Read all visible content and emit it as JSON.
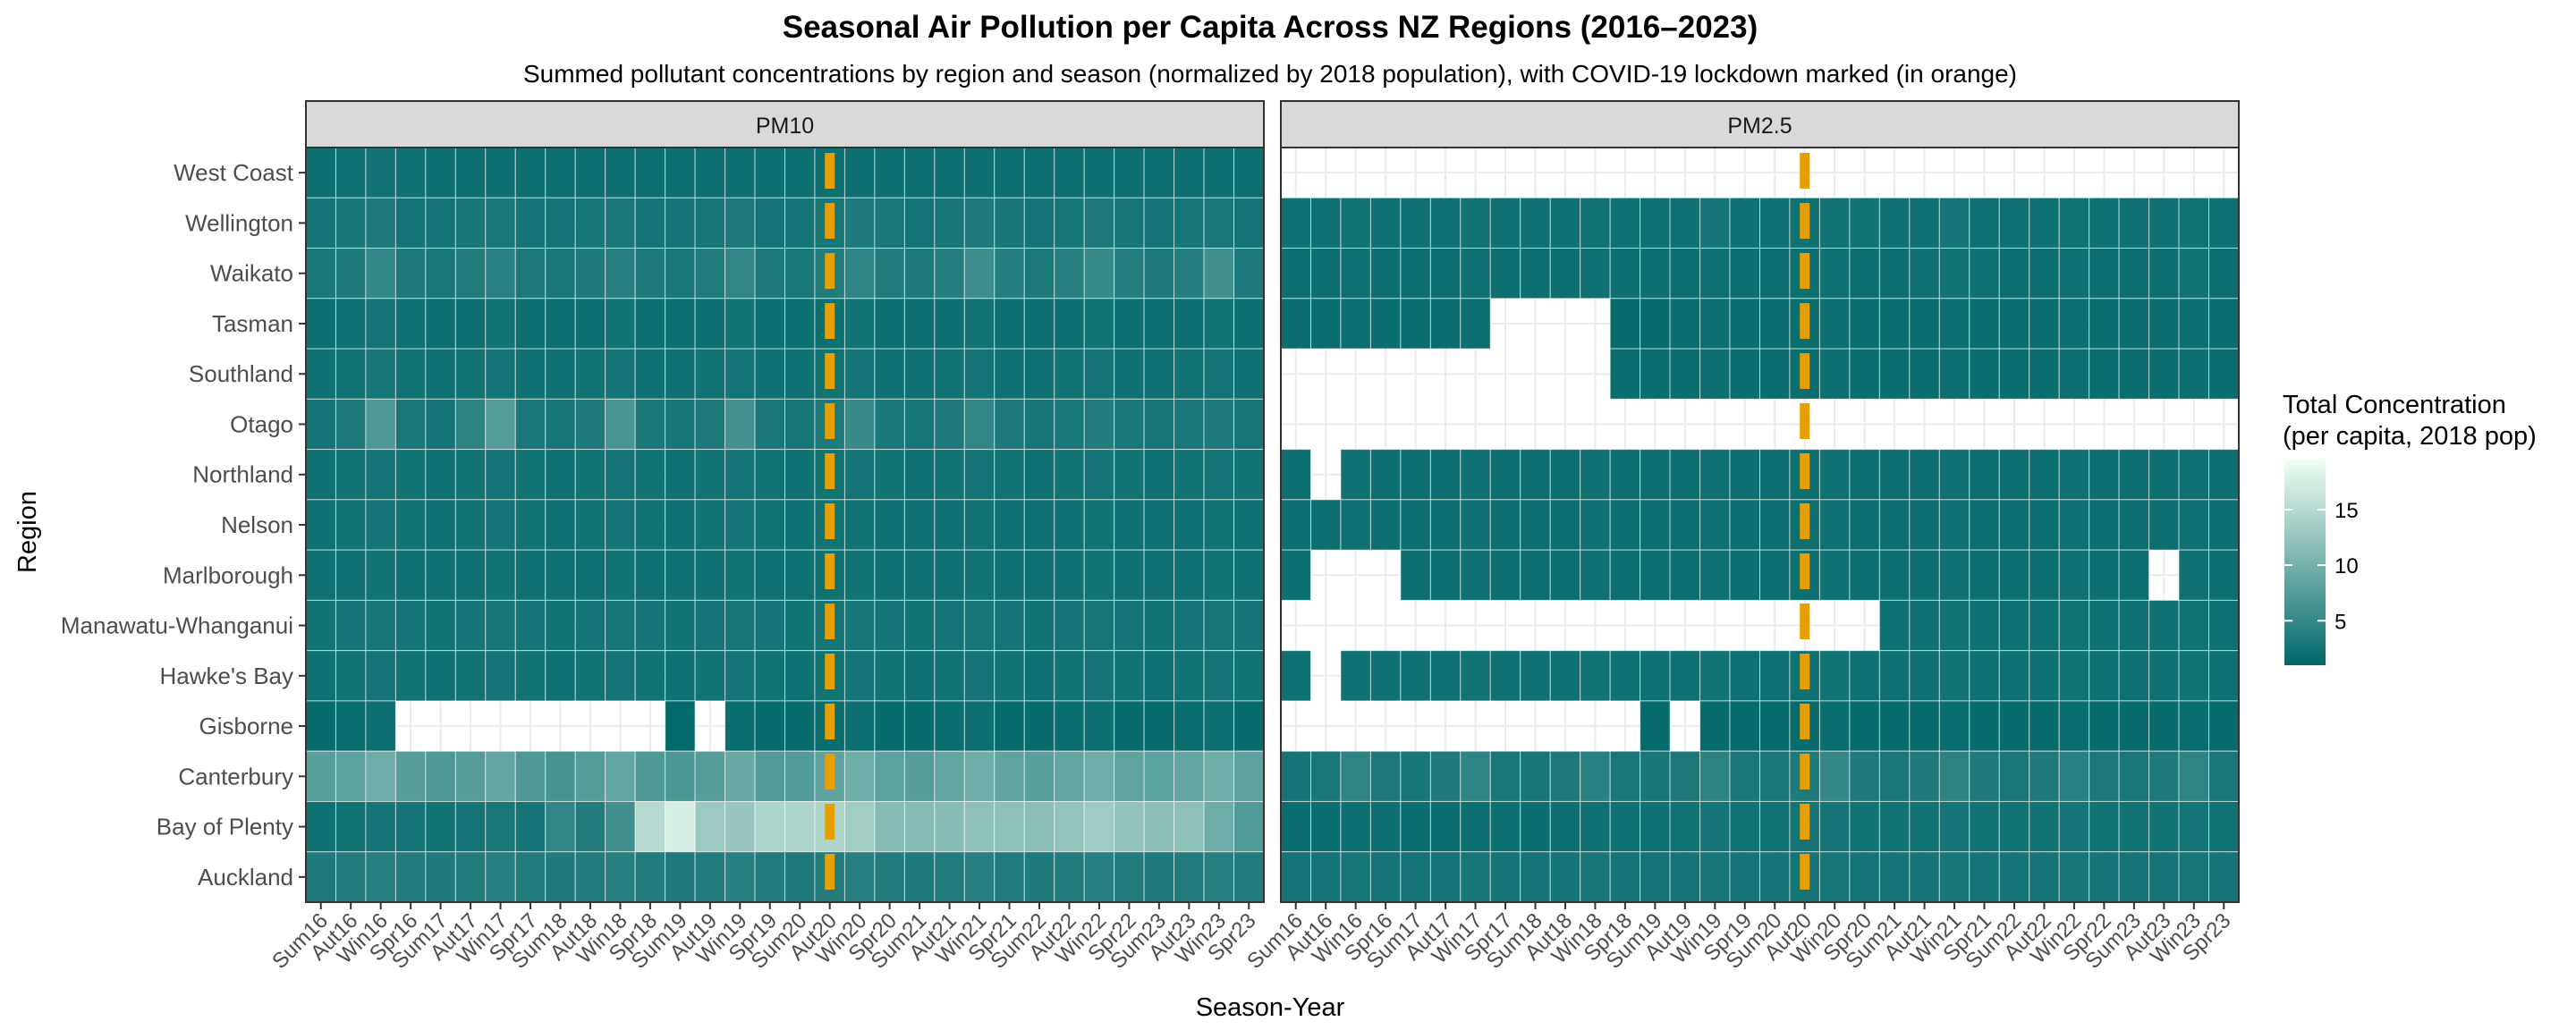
{
  "chart_data": {
    "type": "heatmap",
    "title": "Seasonal Air Pollution per Capita Across NZ Regions (2016–2023)",
    "subtitle": "Summed pollutant concentrations by region and season (normalized by 2018 population), with COVID-19 lockdown marked (in orange)",
    "xlabel": "Season-Year",
    "ylabel": "Region",
    "panels": [
      "PM10",
      "PM2.5"
    ],
    "x_categories": [
      "Sum16",
      "Aut16",
      "Win16",
      "Spr16",
      "Sum17",
      "Aut17",
      "Win17",
      "Spr17",
      "Sum18",
      "Aut18",
      "Win18",
      "Spr18",
      "Sum19",
      "Aut19",
      "Win19",
      "Spr19",
      "Sum20",
      "Aut20",
      "Win20",
      "Spr20",
      "Sum21",
      "Aut21",
      "Win21",
      "Spr21",
      "Sum22",
      "Aut22",
      "Win22",
      "Spr22",
      "Sum23",
      "Aut23",
      "Win23",
      "Spr23"
    ],
    "regions": [
      "West Coast",
      "Wellington",
      "Waikato",
      "Tasman",
      "Southland",
      "Otago",
      "Northland",
      "Nelson",
      "Marlborough",
      "Manawatu-Whanganui",
      "Hawke's Bay",
      "Gisborne",
      "Canterbury",
      "Bay of Plenty",
      "Auckland"
    ],
    "lockdown_marker": {
      "category": "Aut20",
      "color": "#E69F00"
    },
    "legend": {
      "title_line1": "Total Concentration",
      "title_line2": "(per capita, 2018 pop)",
      "breaks": [
        5,
        10,
        15
      ],
      "break_labels": [
        "5",
        "10",
        "15"
      ],
      "range": [
        1,
        19.5
      ],
      "color_low": "#006769",
      "color_high": "#F0FFF2",
      "placement": "right"
    },
    "series": [
      {
        "name": "PM10",
        "values": [
          [
            2.0,
            2.2,
            2.5,
            2.2,
            2.0,
            2.0,
            2.0,
            2.0,
            2.0,
            2.0,
            2.0,
            2.0,
            2.0,
            2.0,
            2.0,
            2.0,
            2.0,
            2.0,
            2.0,
            2.0,
            2.0,
            2.0,
            2.0,
            2.0,
            2.0,
            2.0,
            2.0,
            2.0,
            2.0,
            2.0,
            2.0,
            2.0
          ],
          [
            2.6,
            2.8,
            3.4,
            2.6,
            2.6,
            2.8,
            3.0,
            2.6,
            2.6,
            2.8,
            3.0,
            2.6,
            2.6,
            2.8,
            3.2,
            2.6,
            2.6,
            2.8,
            3.4,
            3.0,
            2.6,
            2.8,
            3.4,
            2.8,
            2.6,
            2.8,
            3.2,
            2.8,
            2.6,
            2.8,
            3.0,
            2.6
          ],
          [
            3.0,
            3.4,
            5.0,
            3.2,
            3.0,
            3.6,
            4.2,
            3.2,
            3.0,
            3.4,
            4.0,
            3.2,
            3.0,
            3.6,
            4.8,
            3.2,
            3.0,
            3.6,
            4.6,
            3.6,
            3.2,
            3.8,
            5.6,
            3.8,
            3.2,
            4.0,
            5.2,
            3.8,
            3.2,
            3.8,
            6.0,
            3.4
          ],
          [
            2.0,
            2.2,
            2.6,
            2.2,
            2.0,
            2.0,
            2.4,
            2.0,
            2.0,
            2.0,
            2.4,
            2.0,
            2.0,
            2.0,
            2.4,
            2.0,
            2.0,
            2.0,
            2.4,
            2.0,
            2.0,
            2.0,
            2.4,
            2.0,
            2.0,
            2.0,
            2.4,
            2.0,
            2.0,
            2.0,
            2.4,
            2.0
          ],
          [
            2.2,
            2.4,
            2.8,
            2.4,
            2.2,
            2.4,
            2.6,
            2.2,
            2.2,
            2.4,
            2.6,
            2.2,
            2.2,
            2.4,
            2.6,
            2.2,
            2.2,
            2.4,
            2.6,
            2.2,
            2.2,
            2.4,
            2.6,
            2.2,
            2.2,
            2.4,
            2.6,
            2.2,
            2.2,
            2.4,
            2.6,
            2.2
          ],
          [
            2.6,
            3.2,
            7.0,
            3.0,
            2.6,
            4.4,
            7.4,
            3.0,
            2.8,
            3.4,
            6.6,
            3.0,
            2.8,
            3.2,
            6.2,
            3.0,
            2.8,
            3.4,
            5.4,
            3.0,
            2.8,
            3.4,
            4.8,
            3.2,
            2.8,
            3.0,
            3.6,
            3.0,
            2.8,
            3.0,
            3.4,
            2.8
          ],
          [
            2.2,
            2.4,
            2.6,
            2.4,
            2.2,
            2.4,
            2.6,
            2.4,
            2.2,
            2.4,
            2.6,
            2.4,
            2.2,
            2.4,
            2.6,
            2.4,
            2.2,
            2.4,
            2.6,
            2.4,
            2.2,
            2.4,
            2.6,
            2.4,
            2.2,
            2.4,
            2.6,
            2.4,
            2.2,
            2.4,
            2.6,
            2.4
          ],
          [
            2.2,
            2.4,
            2.6,
            2.4,
            2.2,
            2.4,
            2.6,
            2.4,
            2.2,
            2.4,
            2.6,
            2.4,
            2.2,
            2.4,
            2.6,
            2.4,
            2.2,
            2.4,
            2.4,
            2.2,
            2.2,
            2.2,
            2.4,
            2.2,
            2.2,
            2.2,
            2.4,
            2.2,
            2.2,
            2.2,
            2.4,
            2.2
          ],
          [
            2.2,
            2.2,
            2.4,
            2.2,
            2.2,
            2.2,
            2.4,
            2.2,
            2.2,
            2.2,
            2.4,
            2.2,
            2.2,
            2.2,
            2.4,
            2.2,
            2.2,
            2.2,
            2.4,
            2.2,
            2.2,
            2.2,
            2.4,
            2.2,
            2.2,
            2.2,
            2.4,
            2.2,
            2.2,
            2.2,
            2.4,
            2.2
          ],
          [
            2.4,
            2.6,
            2.8,
            2.6,
            2.4,
            2.6,
            2.8,
            2.6,
            2.4,
            2.6,
            2.8,
            2.6,
            2.4,
            2.6,
            2.8,
            2.6,
            2.4,
            2.6,
            2.8,
            2.6,
            2.4,
            2.6,
            2.8,
            2.6,
            2.4,
            2.6,
            2.8,
            2.6,
            2.4,
            2.6,
            2.8,
            2.6
          ],
          [
            2.2,
            2.4,
            2.6,
            2.4,
            2.2,
            2.4,
            2.6,
            2.4,
            2.2,
            2.4,
            2.6,
            2.4,
            2.2,
            2.4,
            2.6,
            2.4,
            2.2,
            2.4,
            2.6,
            2.4,
            2.2,
            2.4,
            2.6,
            2.4,
            2.2,
            2.4,
            2.6,
            2.4,
            2.2,
            2.4,
            2.6,
            2.4
          ],
          [
            1.6,
            1.8,
            2.0,
            null,
            null,
            null,
            null,
            null,
            null,
            null,
            null,
            null,
            1.4,
            null,
            1.8,
            1.6,
            1.6,
            1.8,
            2.0,
            1.6,
            1.6,
            1.8,
            2.0,
            1.6,
            1.6,
            1.8,
            2.0,
            1.6,
            1.6,
            1.8,
            2.0,
            1.6
          ],
          [
            7.8,
            8.0,
            9.4,
            7.6,
            7.0,
            7.6,
            8.8,
            7.0,
            6.4,
            7.4,
            8.6,
            7.0,
            6.8,
            7.6,
            9.0,
            7.2,
            7.2,
            8.2,
            9.6,
            8.0,
            7.6,
            8.6,
            9.6,
            8.4,
            7.8,
            8.6,
            9.4,
            8.4,
            8.0,
            8.6,
            9.6,
            8.2
          ],
          [
            2.2,
            2.4,
            2.6,
            2.6,
            2.4,
            2.6,
            3.0,
            2.6,
            4.8,
            3.6,
            6.0,
            15.0,
            17.6,
            13.0,
            12.6,
            14.4,
            14.4,
            14.4,
            13.4,
            11.4,
            11.2,
            11.4,
            12.0,
            11.8,
            11.6,
            12.4,
            13.2,
            12.2,
            11.6,
            11.8,
            9.4,
            7.2
          ],
          [
            3.4,
            3.6,
            4.0,
            3.6,
            3.4,
            3.6,
            4.0,
            3.6,
            3.4,
            3.6,
            4.0,
            3.6,
            3.4,
            3.6,
            4.0,
            3.6,
            3.4,
            3.6,
            4.0,
            3.6,
            3.4,
            3.6,
            4.0,
            3.6,
            3.4,
            3.6,
            4.0,
            3.6,
            3.4,
            3.6,
            4.0,
            3.6
          ]
        ]
      },
      {
        "name": "PM2.5",
        "values": [
          [
            null,
            null,
            null,
            null,
            null,
            null,
            null,
            null,
            null,
            null,
            null,
            null,
            null,
            null,
            null,
            null,
            null,
            null,
            null,
            null,
            null,
            null,
            null,
            null,
            null,
            null,
            null,
            null,
            null,
            null,
            null,
            null
          ],
          [
            2.2,
            2.2,
            2.4,
            2.2,
            2.2,
            2.2,
            2.4,
            2.2,
            2.2,
            2.2,
            2.4,
            2.2,
            2.2,
            2.2,
            2.6,
            2.2,
            2.2,
            2.2,
            2.4,
            2.4,
            2.2,
            2.2,
            2.6,
            2.2,
            2.2,
            2.2,
            2.4,
            2.2,
            2.2,
            2.2,
            2.4,
            2.2
          ],
          [
            2.0,
            2.0,
            2.2,
            2.0,
            2.0,
            2.0,
            2.2,
            2.0,
            2.0,
            2.0,
            2.2,
            2.0,
            2.0,
            2.0,
            2.2,
            2.0,
            2.0,
            2.0,
            2.2,
            2.0,
            2.0,
            2.2,
            2.4,
            2.2,
            2.0,
            2.0,
            2.2,
            2.0,
            2.0,
            2.0,
            2.4,
            2.0
          ],
          [
            1.8,
            1.8,
            2.0,
            1.8,
            1.8,
            1.8,
            2.0,
            null,
            null,
            null,
            null,
            1.6,
            1.6,
            1.8,
            2.0,
            1.8,
            1.8,
            1.8,
            2.0,
            1.8,
            1.8,
            1.8,
            2.0,
            1.8,
            1.8,
            1.8,
            2.0,
            1.8,
            1.8,
            1.8,
            2.0,
            1.8
          ],
          [
            null,
            null,
            null,
            null,
            null,
            null,
            null,
            null,
            null,
            null,
            null,
            1.8,
            1.8,
            1.8,
            2.0,
            1.8,
            1.8,
            1.8,
            2.0,
            1.8,
            1.8,
            1.8,
            2.0,
            1.8,
            1.8,
            1.8,
            2.0,
            1.8,
            1.8,
            1.8,
            2.0,
            1.8
          ],
          [
            null,
            null,
            null,
            null,
            null,
            null,
            null,
            null,
            null,
            null,
            null,
            null,
            null,
            null,
            null,
            null,
            null,
            null,
            null,
            null,
            null,
            null,
            null,
            null,
            null,
            null,
            null,
            null,
            null,
            null,
            null,
            null
          ],
          [
            2.0,
            null,
            2.2,
            2.0,
            2.0,
            2.0,
            2.2,
            2.0,
            2.0,
            2.0,
            2.2,
            2.0,
            2.0,
            2.0,
            2.2,
            2.0,
            2.0,
            2.0,
            2.2,
            2.0,
            2.0,
            2.0,
            2.2,
            2.0,
            2.0,
            2.0,
            2.2,
            2.0,
            2.0,
            2.0,
            2.2,
            2.0
          ],
          [
            2.0,
            2.0,
            2.2,
            2.0,
            2.0,
            2.0,
            2.2,
            2.0,
            2.0,
            2.0,
            2.2,
            2.0,
            2.0,
            2.0,
            2.2,
            2.0,
            2.0,
            2.0,
            2.2,
            2.0,
            2.0,
            2.0,
            2.2,
            2.0,
            2.0,
            2.0,
            2.2,
            2.0,
            2.0,
            2.0,
            2.2,
            2.0
          ],
          [
            2.0,
            null,
            null,
            null,
            2.0,
            2.0,
            2.2,
            2.0,
            2.0,
            2.0,
            2.2,
            2.0,
            2.0,
            2.0,
            2.2,
            2.0,
            2.0,
            2.0,
            2.2,
            2.0,
            2.0,
            2.0,
            2.2,
            2.0,
            2.0,
            2.0,
            2.2,
            2.0,
            2.0,
            null,
            2.2,
            2.0
          ],
          [
            null,
            null,
            null,
            null,
            null,
            null,
            null,
            null,
            null,
            null,
            null,
            null,
            null,
            null,
            null,
            null,
            null,
            null,
            null,
            null,
            2.2,
            2.2,
            2.4,
            2.2,
            2.2,
            2.2,
            2.4,
            2.2,
            2.2,
            2.2,
            2.4,
            2.2
          ],
          [
            2.2,
            null,
            2.2,
            2.2,
            2.2,
            2.2,
            2.4,
            2.2,
            2.2,
            2.2,
            2.4,
            2.2,
            2.2,
            2.2,
            2.4,
            2.2,
            2.2,
            2.2,
            2.4,
            2.2,
            2.2,
            2.2,
            2.4,
            2.2,
            2.2,
            2.2,
            2.4,
            2.2,
            2.2,
            2.2,
            2.4,
            2.2
          ],
          [
            null,
            null,
            null,
            null,
            null,
            null,
            null,
            null,
            null,
            null,
            null,
            null,
            1.6,
            null,
            1.6,
            1.6,
            1.6,
            1.6,
            1.8,
            1.6,
            1.6,
            1.6,
            1.8,
            1.6,
            1.6,
            1.6,
            1.8,
            1.6,
            1.6,
            1.6,
            1.8,
            1.6
          ],
          [
            2.6,
            3.0,
            4.6,
            3.2,
            2.8,
            3.4,
            4.6,
            3.0,
            2.8,
            3.2,
            4.2,
            3.0,
            2.8,
            3.2,
            4.4,
            3.0,
            3.0,
            3.4,
            5.0,
            3.4,
            3.0,
            3.4,
            4.4,
            3.4,
            3.0,
            3.4,
            4.2,
            3.2,
            3.0,
            3.4,
            4.6,
            3.0
          ],
          [
            1.8,
            1.8,
            2.0,
            2.0,
            1.8,
            1.8,
            2.0,
            2.0,
            1.8,
            2.0,
            2.2,
            2.2,
            2.2,
            2.4,
            2.6,
            2.4,
            2.4,
            2.6,
            2.6,
            2.4,
            2.4,
            2.4,
            2.6,
            2.4,
            2.4,
            2.4,
            2.6,
            2.4,
            2.4,
            2.4,
            2.6,
            2.4
          ],
          [
            2.6,
            2.6,
            2.8,
            2.6,
            2.6,
            2.6,
            2.8,
            2.6,
            2.6,
            2.6,
            2.8,
            2.6,
            2.6,
            2.6,
            2.8,
            2.6,
            2.6,
            2.6,
            2.8,
            2.6,
            2.6,
            2.6,
            2.8,
            2.6,
            2.6,
            2.6,
            2.8,
            2.6,
            2.6,
            2.6,
            2.8,
            2.6
          ]
        ]
      }
    ]
  }
}
